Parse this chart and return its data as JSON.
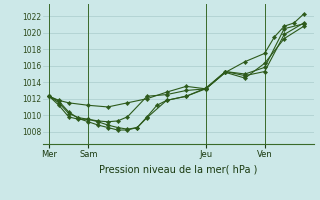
{
  "background_color": "#cce8e8",
  "grid_color": "#aacccc",
  "line_color": "#2d5a1b",
  "xlabel": "Pression niveau de la mer( hPa )",
  "yticks": [
    1008,
    1010,
    1012,
    1014,
    1016,
    1018,
    1020,
    1022
  ],
  "ylim": [
    1006.5,
    1023.5
  ],
  "xtick_labels": [
    "Mer",
    "Sam",
    "Jeu",
    "Ven"
  ],
  "xtick_positions": [
    0,
    2,
    8,
    11
  ],
  "vline_positions": [
    0,
    2,
    8,
    11
  ],
  "series": [
    {
      "x": [
        0,
        0.5,
        1,
        2,
        3,
        4,
        5,
        6,
        7,
        8,
        9,
        10,
        11,
        11.5,
        12,
        12.5,
        13
      ],
      "y": [
        1012.3,
        1011.8,
        1011.5,
        1011.2,
        1011.0,
        1011.5,
        1012.0,
        1012.8,
        1013.5,
        1013.2,
        1015.2,
        1016.5,
        1017.5,
        1019.5,
        1020.8,
        1021.2,
        1022.3
      ]
    },
    {
      "x": [
        0,
        0.5,
        1,
        1.5,
        2,
        2.5,
        3,
        3.5,
        4,
        4.5,
        5,
        6,
        7,
        8,
        9,
        10,
        11,
        12,
        13
      ],
      "y": [
        1012.3,
        1011.7,
        1010.4,
        1009.6,
        1009.2,
        1008.8,
        1008.5,
        1008.2,
        1008.2,
        1008.5,
        1009.7,
        1011.8,
        1012.3,
        1013.2,
        1015.3,
        1014.8,
        1015.3,
        1019.8,
        1021.2
      ]
    },
    {
      "x": [
        0,
        0.5,
        1,
        1.5,
        2,
        2.5,
        3,
        3.5,
        4,
        4.5,
        5,
        5.5,
        6,
        7,
        8,
        9,
        10,
        11,
        12,
        13
      ],
      "y": [
        1012.3,
        1011.5,
        1010.2,
        1009.7,
        1009.5,
        1009.2,
        1008.8,
        1008.5,
        1008.3,
        1008.5,
        1009.8,
        1011.2,
        1011.8,
        1012.3,
        1013.3,
        1015.3,
        1015.0,
        1015.8,
        1020.5,
        1021.1
      ]
    },
    {
      "x": [
        0,
        0.5,
        1,
        1.5,
        2,
        2.5,
        3,
        3.5,
        4,
        5,
        6,
        7,
        8,
        9,
        10,
        11,
        12,
        13
      ],
      "y": [
        1012.3,
        1011.2,
        1009.8,
        1009.5,
        1009.5,
        1009.3,
        1009.2,
        1009.3,
        1009.8,
        1012.3,
        1012.5,
        1013.0,
        1013.2,
        1015.2,
        1014.5,
        1016.3,
        1019.3,
        1020.8
      ]
    }
  ],
  "xlim": [
    -0.3,
    13.5
  ],
  "figsize": [
    3.2,
    2.0
  ],
  "dpi": 100
}
